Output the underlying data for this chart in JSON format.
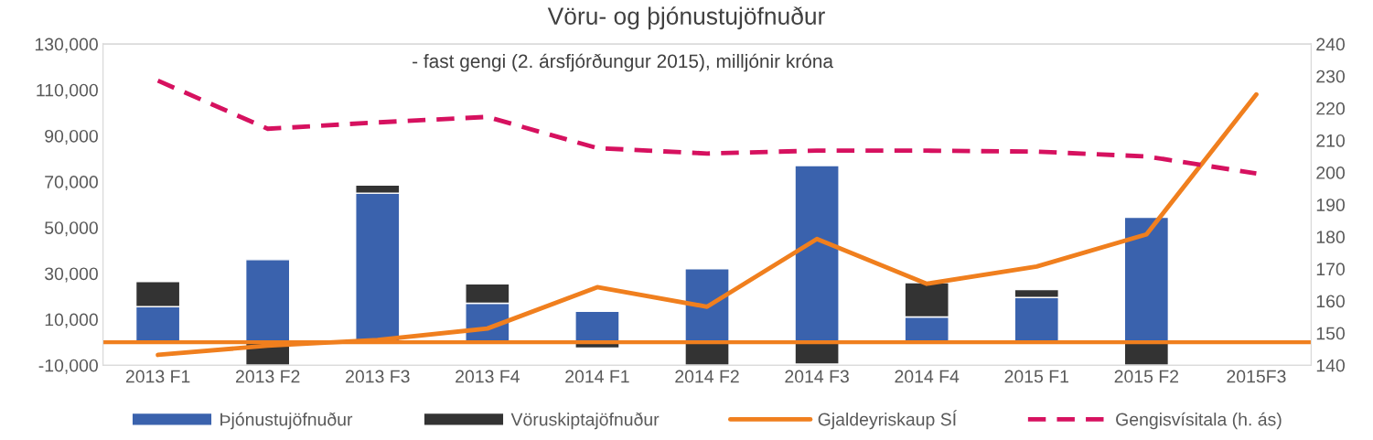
{
  "chart_data": {
    "type": "bar",
    "title": "Vöru- og þjónustujöfnuður",
    "subtitle": "- fast gengi (2. ársfjórðungur 2015), milljónir króna",
    "categories": [
      "2013 F1",
      "2013 F2",
      "2013 F3",
      "2013 F4",
      "2014 F1",
      "2014 F2",
      "2014 F3",
      "2014 F4",
      "2015 F1",
      "2015 F2",
      "2015F3"
    ],
    "stacked": true,
    "series": [
      {
        "name": "Þjónustujöfnuður",
        "color": "#3a62ad",
        "values": [
          15500,
          36000,
          65000,
          17000,
          13500,
          32000,
          77000,
          11000,
          19500,
          54500,
          null
        ]
      },
      {
        "name": "Vöruskiptajöfnuður",
        "color": "#333333",
        "values": [
          11000,
          -10000,
          3500,
          8500,
          -2500,
          -10000,
          -9500,
          15000,
          3500,
          -10000,
          null
        ]
      },
      {
        "name": "Gjaldeyriskaup SÍ",
        "type": "line",
        "color": "#f07f1e",
        "line_style": "solid",
        "values": [
          -5500,
          -1500,
          1000,
          6000,
          24000,
          15500,
          45000,
          25500,
          33000,
          47000,
          108000
        ]
      },
      {
        "name": "Gengisvísitala (h. ás)",
        "type": "line",
        "axis": "y2",
        "color": "#d6115f",
        "line_style": "dashed",
        "values": [
          228.6,
          213.6,
          215.6,
          217.3,
          207.6,
          205.9,
          206.8,
          206.8,
          206.5,
          205,
          199.7
        ]
      }
    ],
    "ylim": [
      -10000,
      130000
    ],
    "yticks": [
      {
        "value": -10000,
        "label": "-10,000"
      },
      {
        "value": 10000,
        "label": "10,000"
      },
      {
        "value": 30000,
        "label": "30,000"
      },
      {
        "value": 50000,
        "label": "50,000"
      },
      {
        "value": 70000,
        "label": "70,000"
      },
      {
        "value": 90000,
        "label": "90,000"
      },
      {
        "value": 110000,
        "label": "110,000"
      },
      {
        "value": 130000,
        "label": "130,000"
      }
    ],
    "y2lim": [
      140,
      240
    ],
    "y2ticks": [
      140,
      150,
      160,
      170,
      180,
      190,
      200,
      210,
      220,
      230,
      240
    ],
    "ref_lines": [
      {
        "axis": "y",
        "value": 0,
        "label": null,
        "color": "#f07f1e"
      }
    ],
    "grid": false,
    "legend": "bottom"
  }
}
